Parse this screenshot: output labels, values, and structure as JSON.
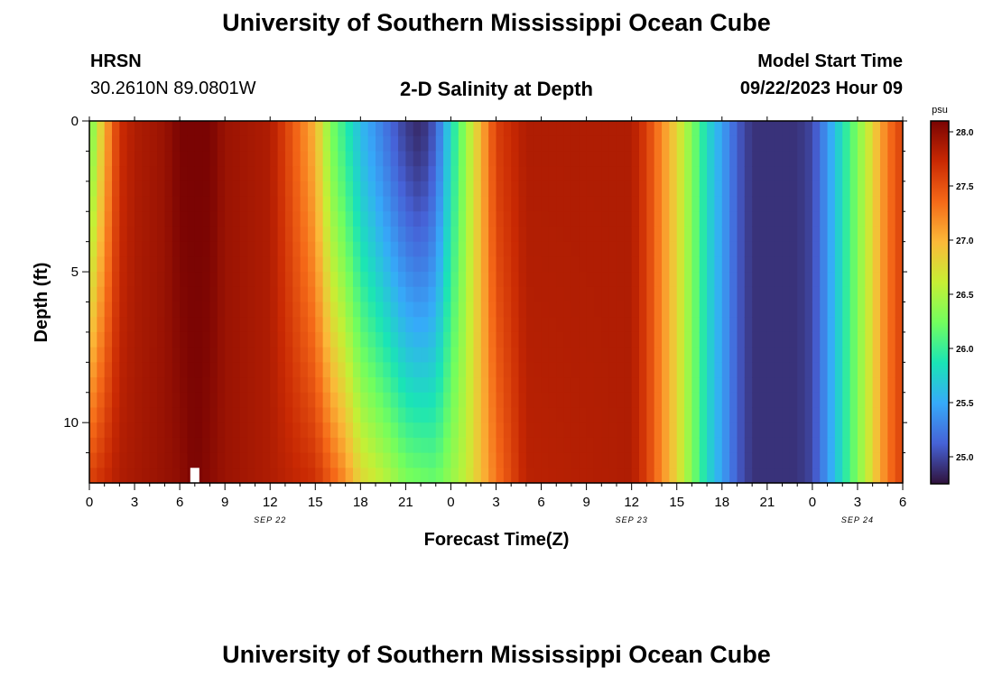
{
  "header": {
    "title": "University of Southern Mississippi Ocean Cube",
    "station": "HRSN",
    "coords": "30.2610N  89.0801W",
    "subtitle": "2-D Salinity at Depth",
    "model_start_label": "Model Start Time",
    "model_start_value": "09/22/2023 Hour 09"
  },
  "footer": {
    "title": "University of Southern Mississippi Ocean Cube"
  },
  "chart_data": {
    "type": "heatmap",
    "title": "2-D Salinity at Depth",
    "xlabel": "Forecast Time(Z)",
    "ylabel": "Depth (ft)",
    "x_hours_range": [
      0,
      54
    ],
    "xlim": [
      0,
      54
    ],
    "ylim": [
      0,
      12
    ],
    "x_ticks": [
      {
        "hour": 0,
        "label": "0"
      },
      {
        "hour": 3,
        "label": "3"
      },
      {
        "hour": 6,
        "label": "6"
      },
      {
        "hour": 9,
        "label": "9"
      },
      {
        "hour": 12,
        "label": "12"
      },
      {
        "hour": 15,
        "label": "15"
      },
      {
        "hour": 18,
        "label": "18"
      },
      {
        "hour": 21,
        "label": "21"
      },
      {
        "hour": 24,
        "label": "0"
      },
      {
        "hour": 27,
        "label": "3"
      },
      {
        "hour": 30,
        "label": "6"
      },
      {
        "hour": 33,
        "label": "9"
      },
      {
        "hour": 36,
        "label": "12"
      },
      {
        "hour": 39,
        "label": "15"
      },
      {
        "hour": 42,
        "label": "18"
      },
      {
        "hour": 45,
        "label": "21"
      },
      {
        "hour": 48,
        "label": "0"
      },
      {
        "hour": 51,
        "label": "3"
      },
      {
        "hour": 54,
        "label": "6"
      }
    ],
    "date_labels": [
      {
        "hour": 12,
        "label": "SEP 22"
      },
      {
        "hour": 36,
        "label": "SEP 23"
      },
      {
        "hour": 51,
        "label": "SEP 24"
      }
    ],
    "y_ticks": [
      {
        "depth": 0,
        "label": "0"
      },
      {
        "depth": 5,
        "label": "5"
      },
      {
        "depth": 10,
        "label": "10"
      }
    ],
    "surface_profile": [
      {
        "hour": 0,
        "psu": 26.2
      },
      {
        "hour": 1,
        "psu": 27.0
      },
      {
        "hour": 2,
        "psu": 27.7
      },
      {
        "hour": 3,
        "psu": 27.85
      },
      {
        "hour": 5,
        "psu": 27.95
      },
      {
        "hour": 6,
        "psu": 28.1
      },
      {
        "hour": 8,
        "psu": 28.1
      },
      {
        "hour": 9,
        "psu": 27.95
      },
      {
        "hour": 12,
        "psu": 27.85
      },
      {
        "hour": 13,
        "psu": 27.6
      },
      {
        "hour": 15,
        "psu": 27.0
      },
      {
        "hour": 16,
        "psu": 26.3
      },
      {
        "hour": 18,
        "psu": 25.6
      },
      {
        "hour": 20,
        "psu": 25.15
      },
      {
        "hour": 21,
        "psu": 24.95
      },
      {
        "hour": 22,
        "psu": 24.85
      },
      {
        "hour": 23,
        "psu": 25.1
      },
      {
        "hour": 24,
        "psu": 25.8
      },
      {
        "hour": 26,
        "psu": 27.0
      },
      {
        "hour": 27,
        "psu": 27.6
      },
      {
        "hour": 29,
        "psu": 27.85
      },
      {
        "hour": 36,
        "psu": 27.85
      },
      {
        "hour": 37,
        "psu": 27.6
      },
      {
        "hour": 39,
        "psu": 26.8
      },
      {
        "hour": 41,
        "psu": 25.8
      },
      {
        "hour": 43,
        "psu": 25.1
      },
      {
        "hour": 44,
        "psu": 24.9
      },
      {
        "hour": 47,
        "psu": 24.9
      },
      {
        "hour": 48,
        "psu": 25.0
      },
      {
        "hour": 49,
        "psu": 25.4
      },
      {
        "hour": 51,
        "psu": 26.3
      },
      {
        "hour": 53,
        "psu": 27.3
      },
      {
        "hour": 54,
        "psu": 27.6
      }
    ],
    "bottom_profile": [
      {
        "hour": 0,
        "psu": 27.6
      },
      {
        "hour": 2,
        "psu": 27.85
      },
      {
        "hour": 6,
        "psu": 28.0
      },
      {
        "hour": 7,
        "psu": 28.1
      },
      {
        "hour": 9,
        "psu": 27.95
      },
      {
        "hour": 12,
        "psu": 27.85
      },
      {
        "hour": 15,
        "psu": 27.7
      },
      {
        "hour": 17,
        "psu": 27.2
      },
      {
        "hour": 18,
        "psu": 26.8
      },
      {
        "hour": 20,
        "psu": 26.5
      },
      {
        "hour": 21,
        "psu": 26.3
      },
      {
        "hour": 23,
        "psu": 26.2
      },
      {
        "hour": 25,
        "psu": 26.6
      },
      {
        "hour": 27,
        "psu": 27.3
      },
      {
        "hour": 29,
        "psu": 27.8
      },
      {
        "hour": 36,
        "psu": 27.85
      },
      {
        "hour": 37,
        "psu": 27.6
      },
      {
        "hour": 39,
        "psu": 26.8
      },
      {
        "hour": 41,
        "psu": 25.8
      },
      {
        "hour": 43,
        "psu": 25.1
      },
      {
        "hour": 44,
        "psu": 24.9
      },
      {
        "hour": 47,
        "psu": 24.9
      },
      {
        "hour": 48,
        "psu": 25.0
      },
      {
        "hour": 49,
        "psu": 25.4
      },
      {
        "hour": 51,
        "psu": 26.3
      },
      {
        "hour": 53,
        "psu": 27.3
      },
      {
        "hour": 54,
        "psu": 27.6
      }
    ],
    "colorbar": {
      "unit": "psu",
      "range": [
        24.75,
        28.1
      ],
      "ticks": [
        "25.0",
        "25.5",
        "26.0",
        "26.5",
        "27.0",
        "27.5",
        "28.0"
      ],
      "tick_values": [
        25.0,
        25.5,
        26.0,
        26.5,
        27.0,
        27.5,
        28.0
      ]
    },
    "missing_cell": {
      "hour_start": 6.7,
      "hour_end": 7.3,
      "depth_start": 11.5,
      "depth_end": 12
    },
    "colors": {
      "stops": [
        "#30123b",
        "#4662d7",
        "#36aaf9",
        "#1ae4b6",
        "#72fe5e",
        "#c7ef34",
        "#fbb938",
        "#f56918",
        "#c92903",
        "#7a0403"
      ]
    }
  }
}
